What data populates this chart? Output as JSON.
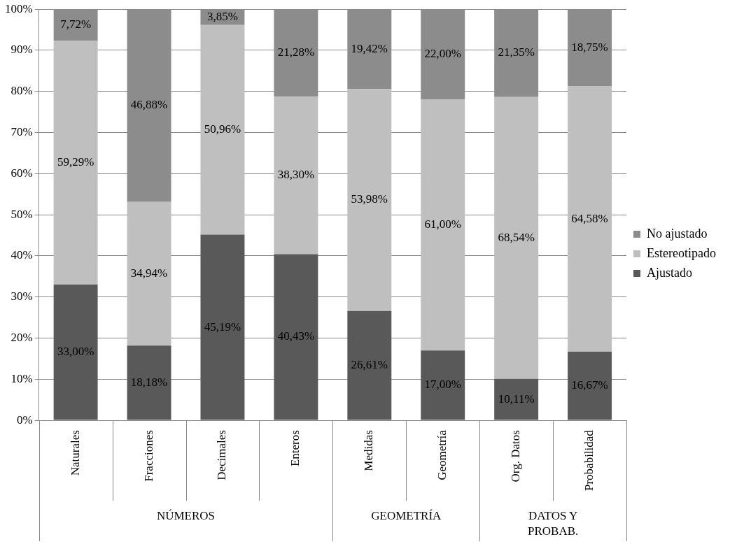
{
  "chart_data": {
    "type": "bar",
    "stacked": true,
    "categories": [
      "Naturales",
      "Fracciones",
      "Decimales",
      "Enteros",
      "Medidas",
      "Geometría",
      "Org. Datos",
      "Probabilidad"
    ],
    "series": [
      {
        "name": "Ajustado",
        "color": "#595959",
        "values": [
          33.0,
          18.18,
          45.19,
          40.43,
          26.61,
          17.0,
          10.11,
          16.67
        ],
        "value_labels": [
          "33,00%",
          "18,18%",
          "45,19%",
          "40,43%",
          "26,61%",
          "17,00%",
          "10,11%",
          "16,67%"
        ]
      },
      {
        "name": "Estereotipado",
        "color": "#bfbfbf",
        "values": [
          59.29,
          34.94,
          50.96,
          38.3,
          53.98,
          61.0,
          68.54,
          64.58
        ],
        "value_labels": [
          "59,29%",
          "34,94%",
          "50,96%",
          "38,30%",
          "53,98%",
          "61,00%",
          "68,54%",
          "64,58%"
        ]
      },
      {
        "name": "No ajustado",
        "color": "#8c8c8c",
        "values": [
          7.72,
          46.88,
          3.85,
          21.28,
          19.42,
          22.0,
          21.35,
          18.75
        ],
        "value_labels": [
          "7,72%",
          "46,88%",
          "3,85%",
          "21,28%",
          "19,42%",
          "22,00%",
          "21,35%",
          "18,75%"
        ]
      }
    ],
    "ylim": [
      0,
      100
    ],
    "yticks": [
      {
        "value": 0,
        "label": "0%"
      },
      {
        "value": 10,
        "label": "10%"
      },
      {
        "value": 20,
        "label": "20%"
      },
      {
        "value": 30,
        "label": "30%"
      },
      {
        "value": 40,
        "label": "40%"
      },
      {
        "value": 50,
        "label": "50%"
      },
      {
        "value": 60,
        "label": "60%"
      },
      {
        "value": 70,
        "label": "70%"
      },
      {
        "value": 80,
        "label": "80%"
      },
      {
        "value": 90,
        "label": "90%"
      },
      {
        "value": 100,
        "label": "100%"
      }
    ],
    "grid": "y",
    "legend": "right",
    "annotations": [
      "NÚMEROS",
      "GEOMETRÍA",
      "DATOS Y\nPROBAB."
    ]
  }
}
